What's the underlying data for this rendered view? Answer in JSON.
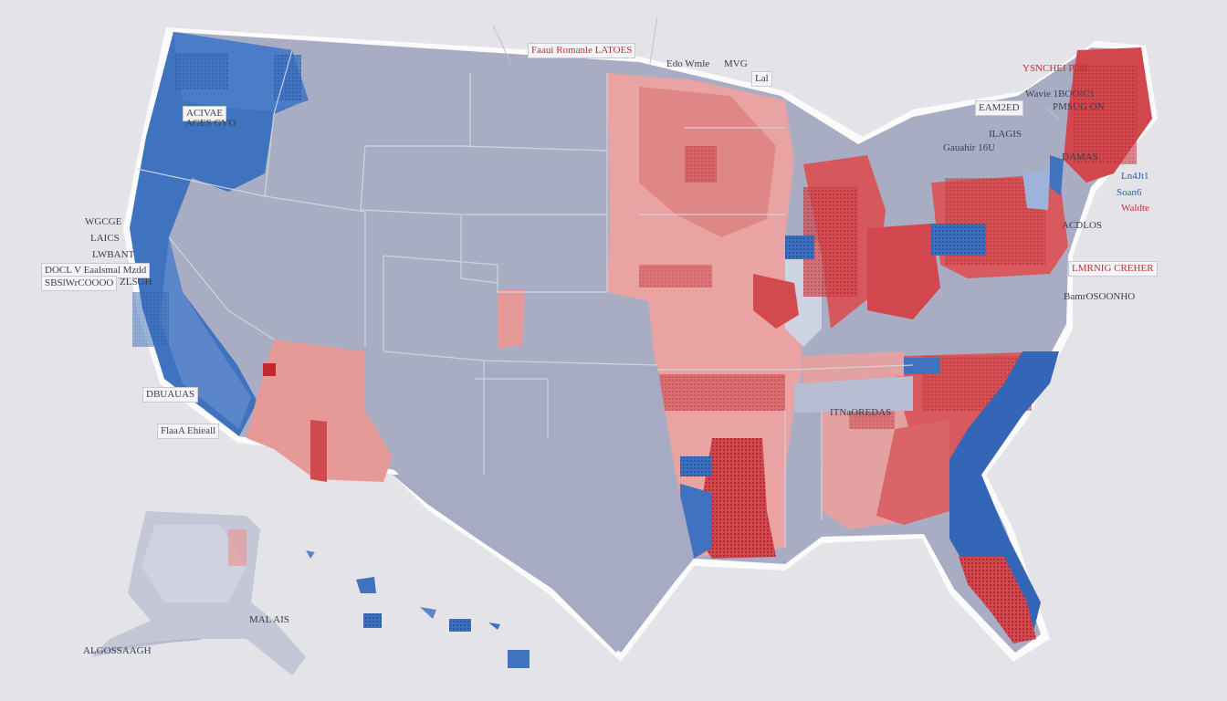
{
  "colors": {
    "background": "#e4e4e8",
    "neutral_state": "#a9adc4",
    "democratic_blue": "#3f73bf",
    "republican_red": "#cf4a4f",
    "light_red": "#e59a98",
    "light_blue": "#9db3da"
  },
  "labels": {
    "top_center": "Faaui Romanle LATOES",
    "top_mid": "Edo Wmle",
    "top_mid2": "MVG",
    "top_right_small": "Lal",
    "top_right": "YSNCHEI POR",
    "ne_1": "Wavie 1BOO!C1",
    "ne_2": "EAM2ED",
    "ne_3": "PMSUG ON",
    "ne_4": "Gauahir 16U",
    "ne_5": "Ln4Jt1",
    "ne_6": "Soan6",
    "ne_7": "Waldte",
    "ne_8": "ILAGIS",
    "east_1": "DAMAS",
    "east_2": "ACDLOS",
    "east_3": "LMRNIG CREHER",
    "east_4": "BamrOSOONHO",
    "nw_1": "ACIVAE",
    "nw_2": "AGES GVO",
    "west_1": "WGCGE",
    "west_2": "LAICS",
    "west_3": "LWBANT",
    "west_4": "DOCL V Eaalsmal Mzdd",
    "west_5": "SBSlWrCOOOO",
    "west_6": "ZLSGH",
    "west_7": "DBUAUAS",
    "sw_1": "FlaaA Ehieall",
    "south_1": "ITNaOREDAS",
    "alaska_1": "MAL AIS",
    "alaska_2": "ALGOSSAAGH"
  }
}
